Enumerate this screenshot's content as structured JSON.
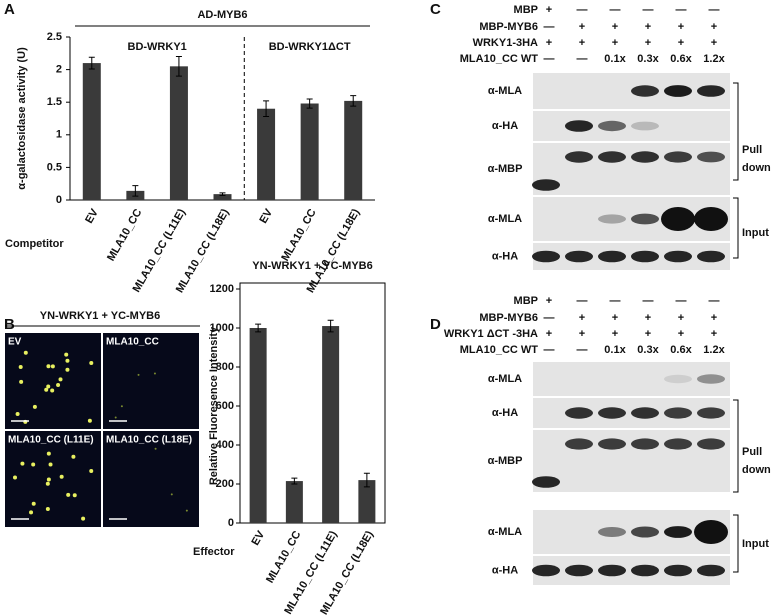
{
  "panel_labels": [
    "A",
    "B",
    "C",
    "D"
  ],
  "chart_data": [
    {
      "type": "bar",
      "title": "AD-MYB6",
      "group_labels": [
        "BD-WRKY1",
        "BD-WRKY1ΔCT"
      ],
      "ylabel": "α-galactosidase activity (U)",
      "xlabel": "Competitor",
      "categories": [
        "EV",
        "MLA10_CC",
        "MLA10_CC (L11E)",
        "MLA10_CC (L18E)",
        "EV",
        "MLA10_CC",
        "MLA10_CC (L18E)"
      ],
      "values": [
        2.1,
        0.14,
        2.05,
        0.09,
        1.4,
        1.48,
        1.52
      ],
      "errors": [
        0.09,
        0.08,
        0.15,
        0.02,
        0.12,
        0.07,
        0.08
      ],
      "color": "#3a3a3a",
      "ylim": [
        0,
        2.5
      ],
      "yticks": [
        0,
        0.5,
        1,
        1.5,
        2,
        2.5
      ]
    },
    {
      "type": "bar",
      "title": "YN-WRKY1 + YC-MYB6",
      "ylabel": "Relative Fluoresence Intensity",
      "xlabel": "Effector",
      "categories": [
        "EV",
        "MLA10_CC",
        "MLA10_CC (L11E)",
        "MLA10_CC (L18E)"
      ],
      "values": [
        1000,
        215,
        1010,
        220
      ],
      "errors": [
        20,
        15,
        30,
        35
      ],
      "color": "#3a3a3a",
      "ylim": [
        0,
        1200
      ],
      "yticks": [
        0,
        200,
        400,
        600,
        800,
        1000,
        1200
      ]
    }
  ],
  "microscopy": {
    "title": "YN-WRKY1 + YC-MYB6",
    "labels": [
      "EV",
      "MLA10_CC",
      "MLA10_CC (L11E)",
      "MLA10_CC (L18E)"
    ]
  },
  "blots": [
    {
      "rows": [
        {
          "label": "MBP",
          "lanes": [
            "+",
            "—",
            "—",
            "—",
            "—",
            "—"
          ]
        },
        {
          "label": "MBP-MYB6",
          "lanes": [
            "—",
            "+",
            "+",
            "+",
            "+",
            "+"
          ]
        },
        {
          "label": "WRKY1-3HA",
          "lanes": [
            "+",
            "+",
            "+",
            "+",
            "+",
            "+"
          ]
        },
        {
          "label": "MLA10_CC WT",
          "lanes": [
            "—",
            "—",
            "0.1x",
            "0.3x",
            "0.6x",
            "1.2x"
          ]
        }
      ],
      "antibodies": [
        "α-MLA",
        "α-HA",
        "α-MBP",
        "α-MLA",
        "α-HA"
      ],
      "pull_down": [
        "Pull",
        "down"
      ],
      "input": "Input"
    },
    {
      "rows": [
        {
          "label": "MBP",
          "lanes": [
            "+",
            "—",
            "—",
            "—",
            "—",
            "—"
          ]
        },
        {
          "label": "MBP-MYB6",
          "lanes": [
            "—",
            "+",
            "+",
            "+",
            "+",
            "+"
          ]
        },
        {
          "label": "WRKY1 ΔCT -3HA",
          "lanes": [
            "+",
            "+",
            "+",
            "+",
            "+",
            "+"
          ]
        },
        {
          "label": "MLA10_CC WT",
          "lanes": [
            "—",
            "—",
            "0.1x",
            "0.3x",
            "0.6x",
            "1.2x"
          ]
        }
      ],
      "antibodies": [
        "α-MLA",
        "α-HA",
        "α-MBP",
        "α-MLA",
        "α-HA"
      ],
      "pull_down": [
        "Pull",
        "down"
      ],
      "input": "Input"
    }
  ]
}
